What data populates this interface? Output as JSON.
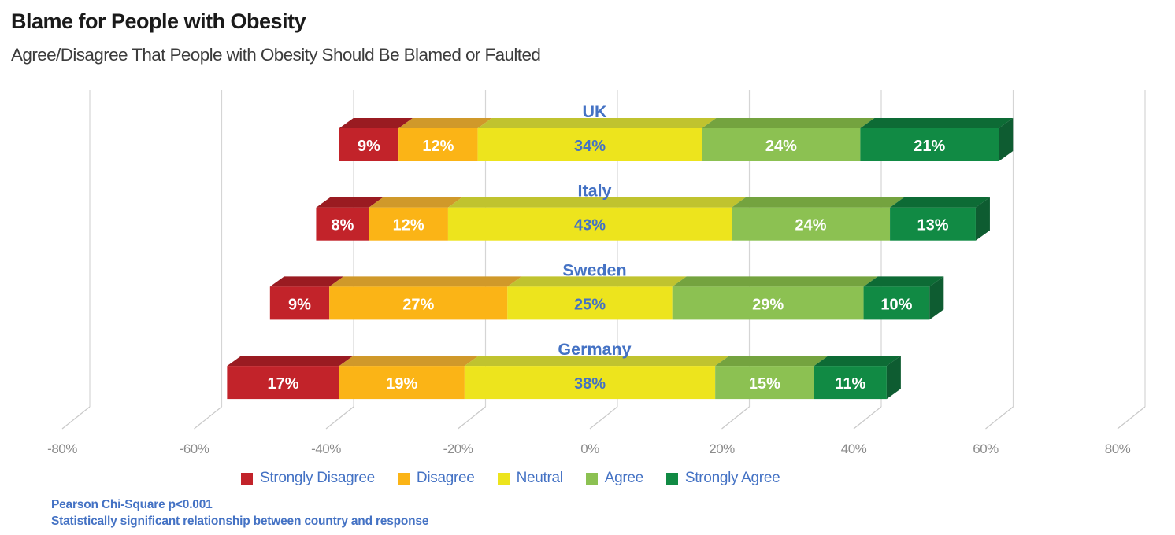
{
  "title": "Blame for People with Obesity",
  "subtitle": "Agree/Disagree That People with Obesity Should Be Blamed or Faulted",
  "footnote": {
    "line1": "Pearson Chi-Square p<0.001",
    "line2": "Statistically significant relationship between country and response"
  },
  "colors": {
    "accent_blue": "#4472C4",
    "axis_label_gray": "#8C8C8C",
    "gridline_gray": "#D5D5D5",
    "title_color": "#1A1A1A",
    "subtitle_color": "#3C3C3C",
    "background": "#FFFFFF"
  },
  "chart_data": {
    "type": "bar",
    "variant": "3d-horizontal-diverging-stacked",
    "title": "Blame for People with Obesity",
    "subtitle": "Agree/Disagree That People with Obesity Should Be Blamed or Faulted",
    "categories": [
      "UK",
      "Italy",
      "Sweden",
      "Germany"
    ],
    "series": [
      {
        "name": "Strongly Disagree",
        "values": [
          9,
          8,
          9,
          17
        ],
        "color": "#C2232A",
        "top_color": "#9A1B21",
        "label_color": "#FFFFFF"
      },
      {
        "name": "Disagree",
        "values": [
          12,
          12,
          27,
          19
        ],
        "color": "#FBB416",
        "top_color": "#D0992A",
        "label_color": "#FFFFFF"
      },
      {
        "name": "Neutral",
        "values": [
          34,
          43,
          25,
          38
        ],
        "color": "#EDE41D",
        "top_color": "#C0C32F",
        "label_color": "#4472C4"
      },
      {
        "name": "Agree",
        "values": [
          24,
          24,
          29,
          15
        ],
        "color": "#8CC152",
        "top_color": "#74A33F",
        "label_color": "#FFFFFF"
      },
      {
        "name": "Strongly Agree",
        "values": [
          21,
          13,
          10,
          11
        ],
        "color": "#118A44",
        "top_color": "#0D6B35",
        "side_color": "#0E5C31",
        "label_color": "#FFFFFF"
      }
    ],
    "value_suffix": "%",
    "alignment": "neutral_centered_on_zero",
    "x_ticks": [
      {
        "value": -80,
        "label": "-80%"
      },
      {
        "value": -60,
        "label": "-60%"
      },
      {
        "value": -40,
        "label": "-40%"
      },
      {
        "value": -20,
        "label": "-20%"
      },
      {
        "value": 0,
        "label": "0%"
      },
      {
        "value": 20,
        "label": "20%"
      },
      {
        "value": 40,
        "label": "40%"
      },
      {
        "value": 60,
        "label": "60%"
      },
      {
        "value": 80,
        "label": "80%"
      }
    ],
    "xlim": [
      -80,
      80
    ],
    "grid": true,
    "legend_position": "bottom",
    "category_label_color": "#4472C4"
  }
}
